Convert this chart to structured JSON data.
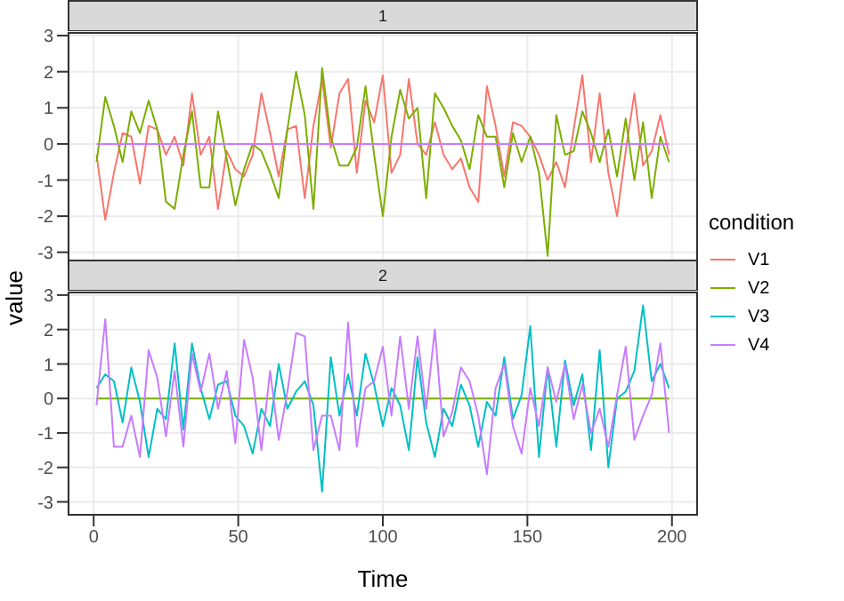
{
  "chart_data": [
    {
      "type": "line",
      "title": "1",
      "ylabel": "value",
      "legend_title": "condition",
      "legend": "right",
      "grid": true,
      "tick_labels": "y",
      "x": [
        1,
        4,
        7,
        10,
        13,
        16,
        19,
        22,
        25,
        28,
        31,
        34,
        37,
        40,
        43,
        46,
        49,
        52,
        55,
        58,
        61,
        64,
        67,
        70,
        73,
        76,
        79,
        82,
        85,
        88,
        91,
        94,
        97,
        100,
        103,
        106,
        109,
        112,
        115,
        118,
        121,
        124,
        127,
        130,
        133,
        136,
        139,
        142,
        145,
        148,
        151,
        154,
        157,
        160,
        163,
        166,
        169,
        172,
        175,
        178,
        181,
        184,
        187,
        190,
        193,
        196,
        199
      ],
      "xlim": [
        -9,
        209
      ],
      "xticks": [
        0,
        50,
        100,
        150,
        200
      ],
      "ylim": [
        -3.4,
        3.1
      ],
      "yticks": [
        -3,
        -2,
        -1,
        0,
        1,
        2,
        3
      ],
      "series": [
        {
          "name": "V1",
          "color": "#f8766d",
          "values": [
            -0.3,
            -2.1,
            -0.8,
            0.3,
            0.2,
            -1.1,
            0.5,
            0.4,
            -0.3,
            0.2,
            -0.6,
            1.4,
            -0.3,
            0.2,
            -1.8,
            -0.2,
            -0.7,
            -0.9,
            -0.3,
            1.4,
            0.3,
            -0.9,
            0.4,
            0.5,
            -1.5,
            0.5,
            1.8,
            -0.1,
            1.4,
            1.8,
            -0.8,
            1.2,
            0.6,
            1.9,
            -0.8,
            -0.3,
            1.8,
            0.0,
            -0.3,
            0.6,
            -0.3,
            -0.7,
            -0.4,
            -1.2,
            -1.6,
            1.6,
            0.5,
            -0.9,
            0.6,
            0.5,
            0.2,
            -0.3,
            -1.0,
            -0.5,
            -1.2,
            0.4,
            1.9,
            -0.5,
            1.4,
            -0.8,
            -2.0,
            -0.2,
            1.4,
            -0.6,
            -0.2,
            0.8,
            -0.3
          ]
        },
        {
          "name": "V2",
          "color": "#7cae00",
          "values": [
            -0.5,
            1.3,
            0.5,
            -0.5,
            0.9,
            0.3,
            1.2,
            0.4,
            -1.6,
            -1.8,
            -0.3,
            0.9,
            -1.2,
            -1.2,
            0.9,
            -0.4,
            -1.7,
            -0.7,
            0.0,
            -0.2,
            -0.8,
            -1.5,
            0.4,
            2.0,
            0.8,
            -1.8,
            2.1,
            0.2,
            -0.6,
            -0.6,
            -0.1,
            1.6,
            -0.3,
            -2.0,
            0.2,
            1.5,
            0.7,
            1.0,
            -1.5,
            1.4,
            1.0,
            0.5,
            0.1,
            -0.7,
            0.8,
            0.2,
            0.2,
            -1.2,
            0.3,
            -0.5,
            0.2,
            -0.8,
            -3.1,
            0.8,
            -0.3,
            -0.2,
            0.9,
            0.3,
            -0.5,
            0.4,
            -0.9,
            0.7,
            -1.0,
            0.6,
            -1.5,
            0.2,
            -0.5
          ]
        },
        {
          "name": "V4",
          "color": "#c77cff",
          "values": [
            0,
            0,
            0,
            0,
            0,
            0,
            0,
            0,
            0,
            0,
            0,
            0,
            0,
            0,
            0,
            0,
            0,
            0,
            0,
            0,
            0,
            0,
            0,
            0,
            0,
            0,
            0,
            0,
            0,
            0,
            0,
            0,
            0,
            0,
            0,
            0,
            0,
            0,
            0,
            0,
            0,
            0,
            0,
            0,
            0,
            0,
            0,
            0,
            0,
            0,
            0,
            0,
            0,
            0,
            0,
            0,
            0,
            0,
            0,
            0,
            0,
            0,
            0,
            0,
            0,
            0,
            0
          ]
        }
      ]
    },
    {
      "type": "line",
      "title": "2",
      "xlabel": "Time",
      "grid": true,
      "x": [
        1,
        4,
        7,
        10,
        13,
        16,
        19,
        22,
        25,
        28,
        31,
        34,
        37,
        40,
        43,
        46,
        49,
        52,
        55,
        58,
        61,
        64,
        67,
        70,
        73,
        76,
        79,
        82,
        85,
        88,
        91,
        94,
        97,
        100,
        103,
        106,
        109,
        112,
        115,
        118,
        121,
        124,
        127,
        130,
        133,
        136,
        139,
        142,
        145,
        148,
        151,
        154,
        157,
        160,
        163,
        166,
        169,
        172,
        175,
        178,
        181,
        184,
        187,
        190,
        193,
        196,
        199
      ],
      "xlim": [
        -9,
        209
      ],
      "xticks": [
        0,
        50,
        100,
        150,
        200
      ],
      "ylim": [
        -3.4,
        3.1
      ],
      "yticks": [
        -3,
        -2,
        -1,
        0,
        1,
        2,
        3
      ],
      "series": [
        {
          "name": "V2",
          "color": "#7cae00",
          "values": [
            0,
            0,
            0,
            0,
            0,
            0,
            0,
            0,
            0,
            0,
            0,
            0,
            0,
            0,
            0,
            0,
            0,
            0,
            0,
            0,
            0,
            0,
            0,
            0,
            0,
            0,
            0,
            0,
            0,
            0,
            0,
            0,
            0,
            0,
            0,
            0,
            0,
            0,
            0,
            0,
            0,
            0,
            0,
            0,
            0,
            0,
            0,
            0,
            0,
            0,
            0,
            0,
            0,
            0,
            0,
            0,
            0,
            0,
            0,
            0,
            0,
            0,
            0,
            0,
            0,
            0,
            0
          ]
        },
        {
          "name": "V3",
          "color": "#00bfc4",
          "values": [
            0.3,
            0.7,
            0.5,
            -0.7,
            0.9,
            -0.1,
            -1.7,
            -0.3,
            -0.6,
            1.6,
            -0.9,
            1.6,
            0.3,
            -0.6,
            0.4,
            0.5,
            -0.5,
            -0.8,
            -1.6,
            -0.3,
            -0.8,
            1.0,
            -0.3,
            0.2,
            0.5,
            -0.2,
            -2.7,
            1.2,
            -0.5,
            0.7,
            -0.5,
            1.3,
            0.4,
            -0.8,
            0.3,
            -0.2,
            -1.5,
            1.2,
            -0.7,
            -1.7,
            -0.3,
            -0.8,
            0.4,
            -0.2,
            -1.4,
            -0.1,
            -0.5,
            1.2,
            -0.6,
            0.1,
            2.1,
            -1.7,
            0.9,
            -1.4,
            1.1,
            -0.2,
            0.7,
            -1.5,
            1.4,
            -2.0,
            0.0,
            0.2,
            0.8,
            2.7,
            0.5,
            1.0,
            0.3
          ]
        },
        {
          "name": "V4",
          "color": "#c77cff",
          "values": [
            -0.2,
            2.3,
            -1.4,
            -1.4,
            -0.5,
            -1.7,
            1.4,
            0.6,
            -1.1,
            0.8,
            -1.4,
            1.3,
            0.2,
            1.3,
            -0.3,
            0.8,
            -1.3,
            1.7,
            0.6,
            -1.5,
            0.8,
            -1.2,
            0.2,
            1.9,
            1.8,
            -1.5,
            -0.5,
            -0.5,
            -1.5,
            2.2,
            -1.4,
            0.3,
            0.5,
            1.5,
            -0.5,
            1.8,
            -0.3,
            1.8,
            -0.3,
            2.0,
            -1.1,
            -0.4,
            0.9,
            0.5,
            -0.5,
            -2.2,
            0.3,
            1.0,
            -0.8,
            -1.6,
            0.3,
            -0.8,
            0.9,
            -0.1,
            1.0,
            -0.6,
            0.4,
            -1.0,
            -0.3,
            -1.4,
            0.1,
            1.5,
            -1.2,
            -0.5,
            0.1,
            1.6,
            -1.0
          ]
        }
      ]
    }
  ]
}
